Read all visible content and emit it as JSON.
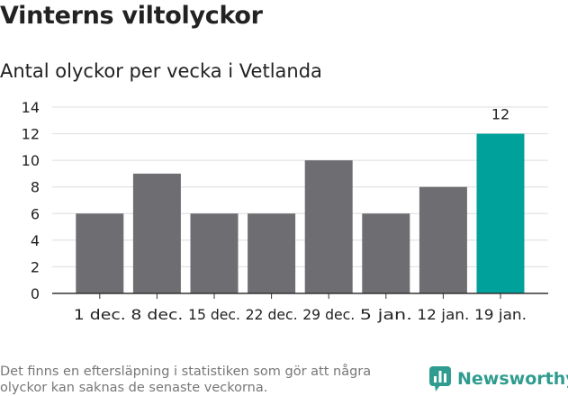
{
  "header": {
    "title": "Vinterns viltolyckor",
    "subtitle": "Antal olyckor per vecka i Vetlanda"
  },
  "footer": {
    "note": "Det finns en eftersläpning i statistiken som gör att några olyckor kan saknas de senaste veckorna.",
    "brand": "Newsworthy"
  },
  "colors": {
    "bar": "#6e6d71",
    "highlight": "#00a19a",
    "grid": "#dddddd",
    "axis": "#333333",
    "brand": "#2f9c8f"
  },
  "chart_data": {
    "type": "bar",
    "title": "Antal olyckor per vecka i Vetlanda",
    "categories": [
      "1 dec.",
      "8 dec.",
      "15 dec.",
      "22 dec.",
      "29 dec.",
      "5 jan.",
      "12 jan.",
      "19 jan."
    ],
    "values": [
      6,
      9,
      6,
      6,
      10,
      6,
      8,
      12
    ],
    "highlight_index": 7,
    "data_labels": [
      "",
      "",
      "",
      "",
      "",
      "",
      "",
      "12"
    ],
    "yticks": [
      "0",
      "2",
      "4",
      "6",
      "8",
      "10",
      "12",
      "14"
    ],
    "ylim": [
      0,
      14
    ],
    "grid": true,
    "legend": "none"
  }
}
